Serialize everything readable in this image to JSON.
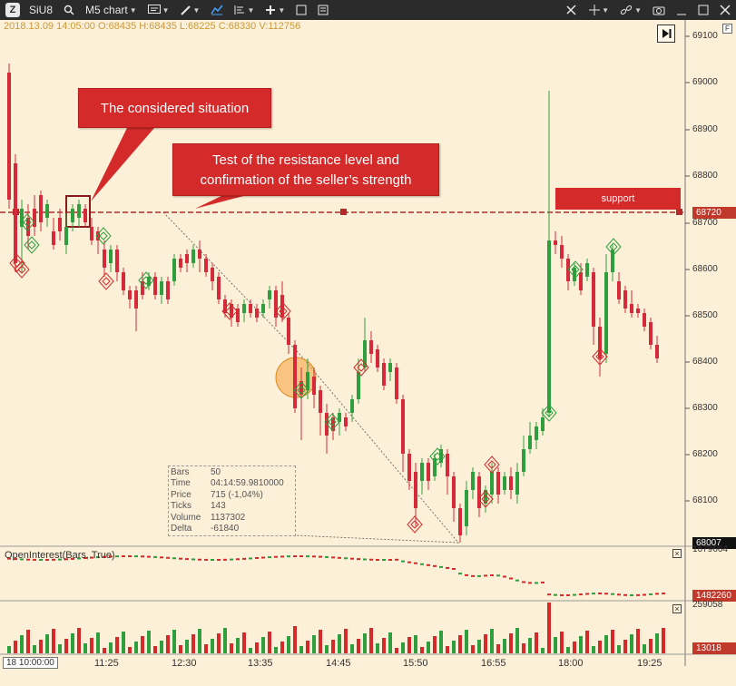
{
  "toolbar": {
    "symbol": "SiU8",
    "chart_type": "M5 chart",
    "icons": [
      "search-icon",
      "chart-style-icon",
      "pencil-icon",
      "line-chart-icon",
      "indicators-icon",
      "plus-icon",
      "square-icon",
      "template-icon",
      "tools-icon",
      "cursor-icon",
      "link-icon",
      "camera-icon",
      "window-icon",
      "maximize-icon",
      "close-icon"
    ]
  },
  "ohlc_line": "2018.13.09 14:05:00   O:68435  H:68435  L:68225  C:68330  V:112756",
  "callouts": {
    "considered": "The considered situation",
    "resistance_line1": "Test of the resistance level and",
    "resistance_line2": "confirmation of the seller’s strength",
    "support": "support"
  },
  "y_axis": {
    "labels": [
      "69100",
      "69000",
      "68900",
      "68800",
      "68700",
      "68600",
      "68500",
      "68400",
      "68300",
      "68200",
      "68100"
    ],
    "current_level": "68720",
    "last_price": "68007"
  },
  "x_axis": {
    "first_label": "18 10:00:00",
    "labels": [
      "11:25",
      "12:30",
      "13:35",
      "14:45",
      "15:50",
      "16:55",
      "18:00",
      "19:25"
    ]
  },
  "info_box": {
    "rows": [
      {
        "k": "Bars",
        "v": "50"
      },
      {
        "k": "Time",
        "v": "04:14:59.9810000"
      },
      {
        "k": "Price",
        "v": "715 (-1,04%)"
      },
      {
        "k": "Ticks",
        "v": "143"
      },
      {
        "k": "Volume",
        "v": "1137302"
      },
      {
        "k": "Delta",
        "v": "-61840"
      }
    ]
  },
  "oi_panel": {
    "title": "OpenInterest(Bars, True)",
    "top_value": "1679664",
    "current_value": "1482260"
  },
  "volume_panel": {
    "top_value": "259058",
    "current_value": "13018"
  },
  "colors": {
    "background": "#fdf0d8",
    "bull": "#2e9e3e",
    "bear": "#d42a3a",
    "callout": "#d42a2a",
    "toolbar": "#2b2b2b"
  }
}
